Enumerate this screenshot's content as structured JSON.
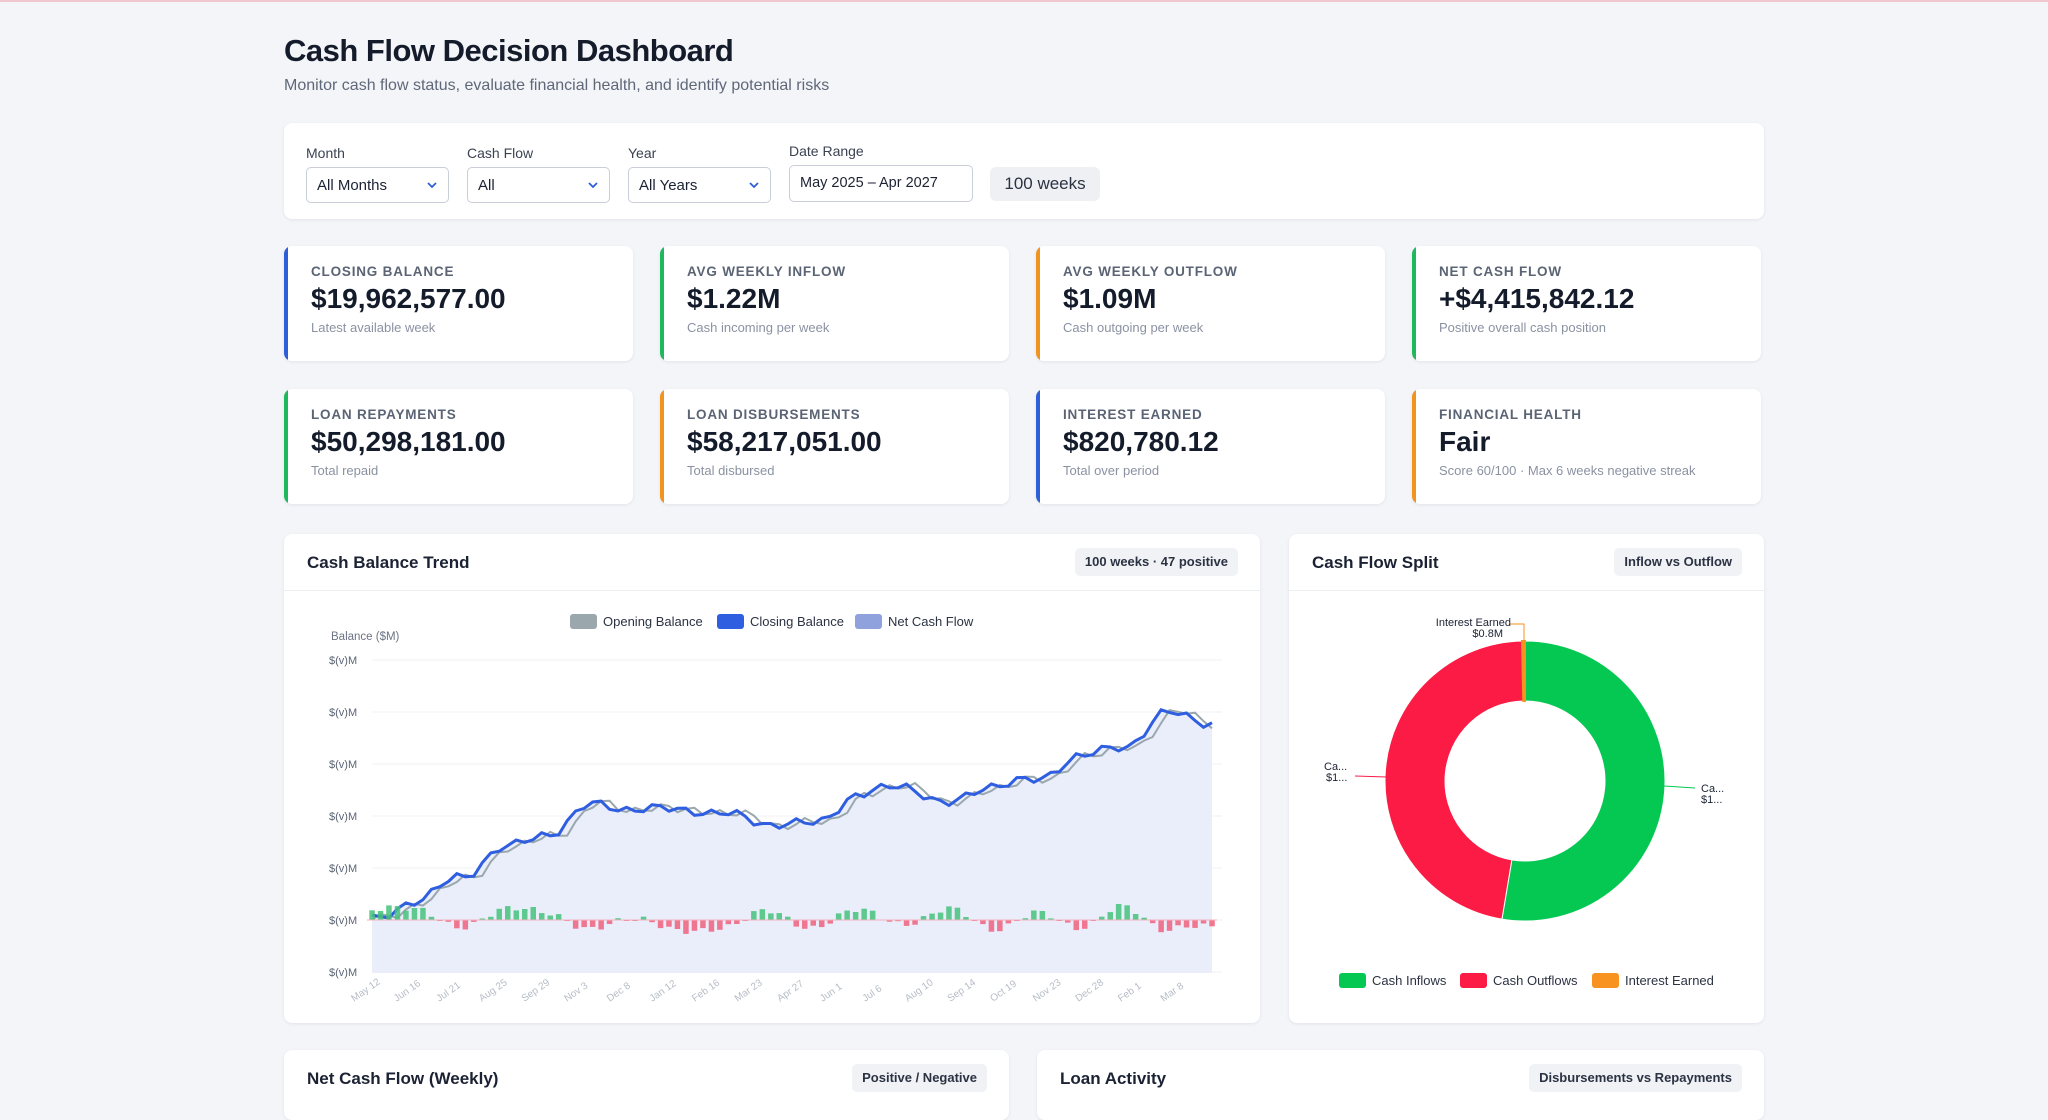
{
  "header": {
    "title": "Cash Flow Decision Dashboard",
    "subtitle": "Monitor cash flow status, evaluate financial health, and identify potential risks"
  },
  "filters": {
    "month": {
      "label": "Month",
      "value": "All Months"
    },
    "cashflow": {
      "label": "Cash Flow",
      "value": "All"
    },
    "year": {
      "label": "Year",
      "value": "All Years"
    },
    "daterange": {
      "label": "Date Range",
      "value": "May 2025 – Apr 2027"
    },
    "weeks_badge": "100 weeks"
  },
  "kpis": [
    {
      "label": "CLOSING BALANCE",
      "value": "$19,962,577.00",
      "sub": "Latest available week",
      "color": "#2f5fd8"
    },
    {
      "label": "AVG WEEKLY INFLOW",
      "value": "$1.22M",
      "sub": "Cash incoming per week",
      "color": "#1fb85c"
    },
    {
      "label": "AVG WEEKLY OUTFLOW",
      "value": "$1.09M",
      "sub": "Cash outgoing per week",
      "color": "#f0931f"
    },
    {
      "label": "NET CASH FLOW",
      "value": "+$4,415,842.12",
      "sub": "Positive overall cash position",
      "color": "#1fb85c"
    },
    {
      "label": "LOAN REPAYMENTS",
      "value": "$50,298,181.00",
      "sub": "Total repaid",
      "color": "#1fb85c"
    },
    {
      "label": "LOAN DISBURSEMENTS",
      "value": "$58,217,051.00",
      "sub": "Total disbursed",
      "color": "#f0931f"
    },
    {
      "label": "INTEREST EARNED",
      "value": "$820,780.12",
      "sub": "Total over period",
      "color": "#2f5fd8"
    },
    {
      "label": "FINANCIAL HEALTH",
      "value": "Fair",
      "sub": "Score 60/100 · Max 6 weeks negative streak",
      "color": "#f0931f"
    }
  ],
  "trend": {
    "title": "Cash Balance Trend",
    "tag": "100 weeks · 47 positive",
    "legend": [
      "Opening Balance",
      "Closing Balance",
      "Net Cash Flow"
    ],
    "legend_colors": [
      "#9aa7ad",
      "#2f5fe0",
      "#8fa2de"
    ],
    "y_axis_label": "Balance ($M)",
    "y_ticks": [
      "$(v)M",
      "$(v)M",
      "$(v)M",
      "$(v)M",
      "$(v)M",
      "$(v)M",
      "$(v)M"
    ],
    "x_ticks": [
      "May 12",
      "Jun 16",
      "Jul 21",
      "Aug 25",
      "Sep 29",
      "Nov 3",
      "Dec 8",
      "Jan 12",
      "Feb 16",
      "Mar 23",
      "Apr 27",
      "Jun 1",
      "Jul 6",
      "Aug 10",
      "Sep 14",
      "Oct 19",
      "Nov 23",
      "Dec 28",
      "Feb 1",
      "Mar 8"
    ]
  },
  "split": {
    "title": "Cash Flow Split",
    "tag": "Inflow vs Outflow",
    "labels": {
      "interest": [
        "Interest Earned",
        "$0.8M"
      ],
      "outflows": [
        "Ca...",
        "$1..."
      ],
      "inflows": [
        "Ca...",
        "$1..."
      ]
    },
    "legend": [
      "Cash Inflows",
      "Cash Outflows",
      "Interest Earned"
    ]
  },
  "bottom": {
    "net_title": "Net Cash Flow (Weekly)",
    "net_tag": "Positive / Negative",
    "loan_title": "Loan Activity",
    "loan_tag": "Disbursements vs Repayments"
  },
  "chart_data": [
    {
      "type": "line",
      "title": "Cash Balance Trend",
      "ylabel": "Balance ($M)",
      "x": [
        "May 12",
        "Jun 16",
        "Jul 21",
        "Aug 25",
        "Sep 29",
        "Nov 3",
        "Dec 8",
        "Jan 12",
        "Feb 16",
        "Mar 23",
        "Apr 27",
        "Jun 1",
        "Jul 6",
        "Aug 10",
        "Sep 14",
        "Oct 19",
        "Nov 23",
        "Dec 28",
        "Feb 1",
        "Mar 8"
      ],
      "series": [
        {
          "name": "Closing Balance",
          "values": [
            15.6,
            16.0,
            16.5,
            17.1,
            17.4,
            18.0,
            17.9,
            17.9,
            17.8,
            17.6,
            17.6,
            18.2,
            18.4,
            18.0,
            18.4,
            18.5,
            19.0,
            19.2,
            19.9,
            19.7
          ]
        },
        {
          "name": "Opening Balance",
          "values": [
            15.5,
            15.9,
            16.4,
            17.0,
            17.3,
            17.9,
            17.9,
            17.9,
            17.7,
            17.6,
            17.5,
            18.2,
            18.4,
            18.0,
            18.3,
            18.5,
            18.9,
            19.2,
            19.9,
            19.8
          ]
        },
        {
          "name": "Net Cash Flow",
          "values": [
            0.3,
            0.4,
            -0.3,
            0.4,
            0.2,
            -0.3,
            0.1,
            -0.4,
            -0.2,
            0.3,
            -0.3,
            0.4,
            -0.2,
            0.4,
            -0.3,
            0.2,
            -0.2,
            0.4,
            -0.3,
            -0.2
          ]
        }
      ],
      "grid": true,
      "legend": "top"
    },
    {
      "type": "pie",
      "title": "Cash Flow Split",
      "categories": [
        "Cash Inflows",
        "Cash Outflows",
        "Interest Earned"
      ],
      "values": [
        122,
        109,
        0.8
      ],
      "legend": "bottom"
    }
  ]
}
